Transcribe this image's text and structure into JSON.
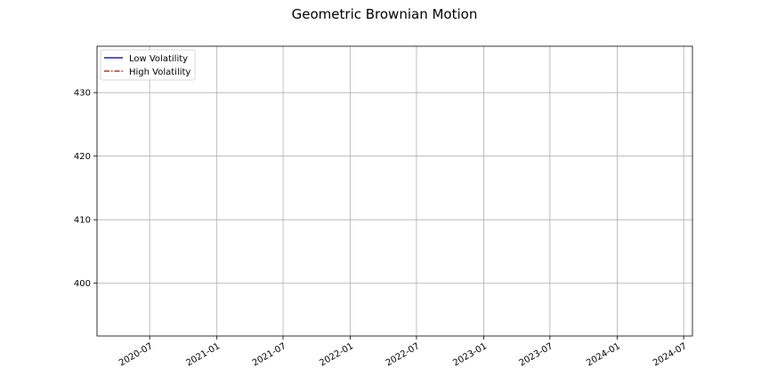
{
  "chart_data": {
    "type": "line",
    "title": "Geometric Brownian Motion",
    "xlabel": "",
    "ylabel": "",
    "xlim": [
      "2020-02-08",
      "2024-07-25"
    ],
    "ylim": [
      391.7,
      437.3
    ],
    "x_ticks": [
      {
        "date": "2020-07-01",
        "label": "2020-07"
      },
      {
        "date": "2021-01-01",
        "label": "2021-01"
      },
      {
        "date": "2021-07-01",
        "label": "2021-07"
      },
      {
        "date": "2022-01-01",
        "label": "2022-01"
      },
      {
        "date": "2022-07-01",
        "label": "2022-07"
      },
      {
        "date": "2023-01-01",
        "label": "2023-01"
      },
      {
        "date": "2023-07-01",
        "label": "2023-07"
      },
      {
        "date": "2024-01-01",
        "label": "2024-01"
      },
      {
        "date": "2024-07-01",
        "label": "2024-07"
      }
    ],
    "y_ticks": [
      400,
      410,
      420,
      430
    ],
    "grid": true,
    "legend_position": "upper-left",
    "series": [
      {
        "name": "Low Volatility",
        "color": "#1f1fcc",
        "line_style": "solid",
        "values": []
      },
      {
        "name": "High Volatility",
        "color": "#d62728",
        "line_style": "dashdot",
        "values": []
      }
    ]
  }
}
